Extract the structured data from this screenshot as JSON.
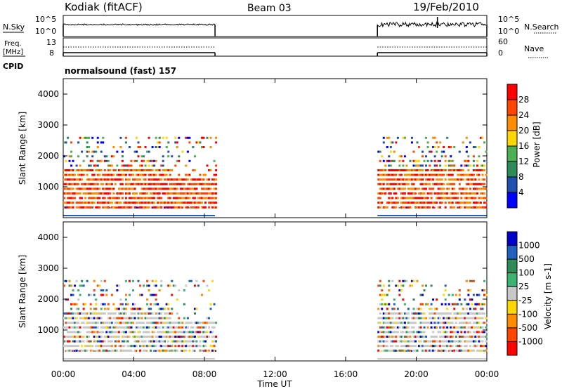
{
  "header": {
    "station": "Kodiak (fitACF)",
    "beam": "Beam 03",
    "date": "19/Feb/2010"
  },
  "panels": {
    "nsky": {
      "left_label": "N.Sky",
      "right_label": "N.Search",
      "left_ticks": [
        "10^5",
        "10^0"
      ],
      "right_ticks": [
        "10^5",
        "10^0"
      ]
    },
    "freq": {
      "left_label_line1": "Freq.",
      "left_label_line2": "[MHz]",
      "left_ticks": [
        "13",
        "8"
      ],
      "right_ticks": [
        "60",
        "0"
      ],
      "right_label": "Nave"
    },
    "cpid": {
      "left_label": "CPID",
      "text": "normalsound (fast) 157"
    }
  },
  "colors": {
    "power": [
      "#0000ff",
      "#1f4fb0",
      "#2e8b57",
      "#4caf50",
      "#ffd700",
      "#ff8c00",
      "#ff4500",
      "#ff0000"
    ],
    "velocity": [
      "#ff0000",
      "#ff4500",
      "#ff8c00",
      "#ffd700",
      "#c8c8c8",
      "#3cb371",
      "#2e8b57",
      "#2060c0",
      "#0000cd"
    ]
  },
  "chart_data": [
    {
      "type": "heatmap",
      "name_on_chart": "",
      "ylabel": "Slant Range [km]",
      "ylim": [
        0,
        4500
      ],
      "yticks": [
        1000,
        2000,
        3000,
        4000
      ],
      "colorbar_label": "Power [dB]",
      "colorbar_ticks": [
        "4",
        "8",
        "12",
        "16",
        "20",
        "24",
        "28"
      ],
      "data_intervals_hours": [
        [
          0,
          8.6
        ],
        [
          17.8,
          24
        ]
      ]
    },
    {
      "type": "heatmap",
      "name_on_chart": "",
      "ylabel": "Slant Range [km]",
      "ylim": [
        0,
        4500
      ],
      "yticks": [
        1000,
        2000,
        3000,
        4000
      ],
      "colorbar_label": "Velocity [m s-1]",
      "colorbar_ticks": [
        "1000",
        "500",
        "100",
        "25",
        "-25",
        "-100",
        "-500",
        "-1000"
      ],
      "data_intervals_hours": [
        [
          0,
          8.6
        ],
        [
          17.8,
          24
        ]
      ]
    }
  ],
  "xaxis": {
    "label": "Time UT",
    "ticks": [
      "00:00",
      "04:00",
      "08:00",
      "12:00",
      "16:00",
      "20:00",
      "00:00"
    ],
    "range_hours": [
      0,
      24
    ]
  }
}
